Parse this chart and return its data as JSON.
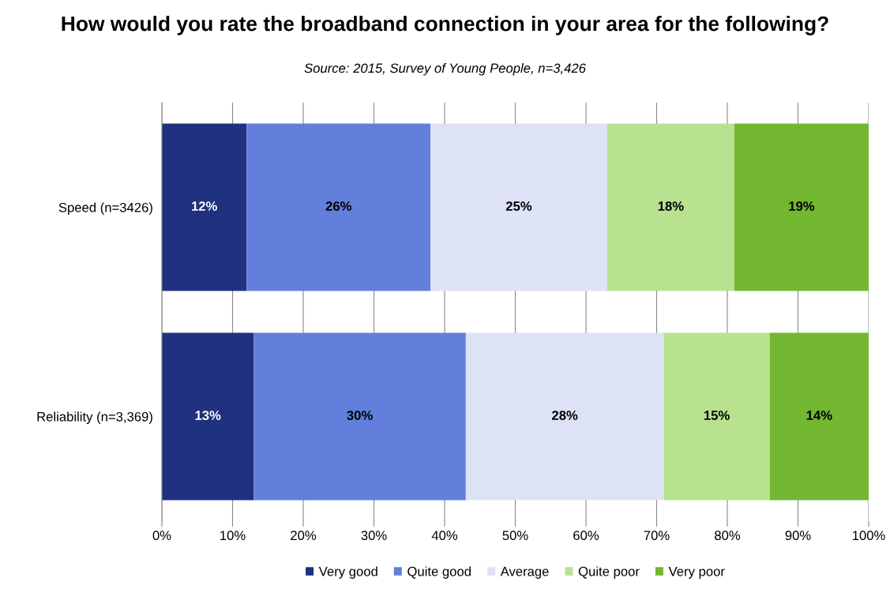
{
  "chart_data": {
    "type": "bar",
    "orientation": "horizontal",
    "stacked": true,
    "title": "How would you rate the broadband connection in your area for the following?",
    "subtitle": "Source: 2015, Survey of Young People, n=3,426",
    "categories": [
      "Speed (n=3426)",
      "Reliability (n=3,369)"
    ],
    "series": [
      {
        "name": "Very good",
        "color": "#1f317f",
        "values": [
          12,
          13
        ],
        "value_labels": [
          "12%",
          "13%"
        ]
      },
      {
        "name": "Quite good",
        "color": "#627fdc",
        "values": [
          26,
          30
        ],
        "value_labels": [
          "26%",
          "30%"
        ]
      },
      {
        "name": "Average",
        "color": "#dde2f6",
        "values": [
          25,
          28
        ],
        "value_labels": [
          "25%",
          "28%"
        ]
      },
      {
        "name": "Quite poor",
        "color": "#b8e290",
        "values": [
          18,
          15
        ],
        "value_labels": [
          "18%",
          "15%"
        ]
      },
      {
        "name": "Very poor",
        "color": "#72b72f",
        "values": [
          19,
          14
        ],
        "value_labels": [
          "19%",
          "14%"
        ]
      }
    ],
    "xlim": [
      0,
      100
    ],
    "xticks": [
      {
        "value": 0,
        "label": "0%"
      },
      {
        "value": 10,
        "label": "10%"
      },
      {
        "value": 20,
        "label": "20%"
      },
      {
        "value": 30,
        "label": "30%"
      },
      {
        "value": 40,
        "label": "40%"
      },
      {
        "value": 50,
        "label": "50%"
      },
      {
        "value": 60,
        "label": "60%"
      },
      {
        "value": 70,
        "label": "70%"
      },
      {
        "value": 80,
        "label": "80%"
      },
      {
        "value": 90,
        "label": "90%"
      },
      {
        "value": 100,
        "label": "100%"
      }
    ],
    "grid": "x",
    "legend": "bottom"
  }
}
